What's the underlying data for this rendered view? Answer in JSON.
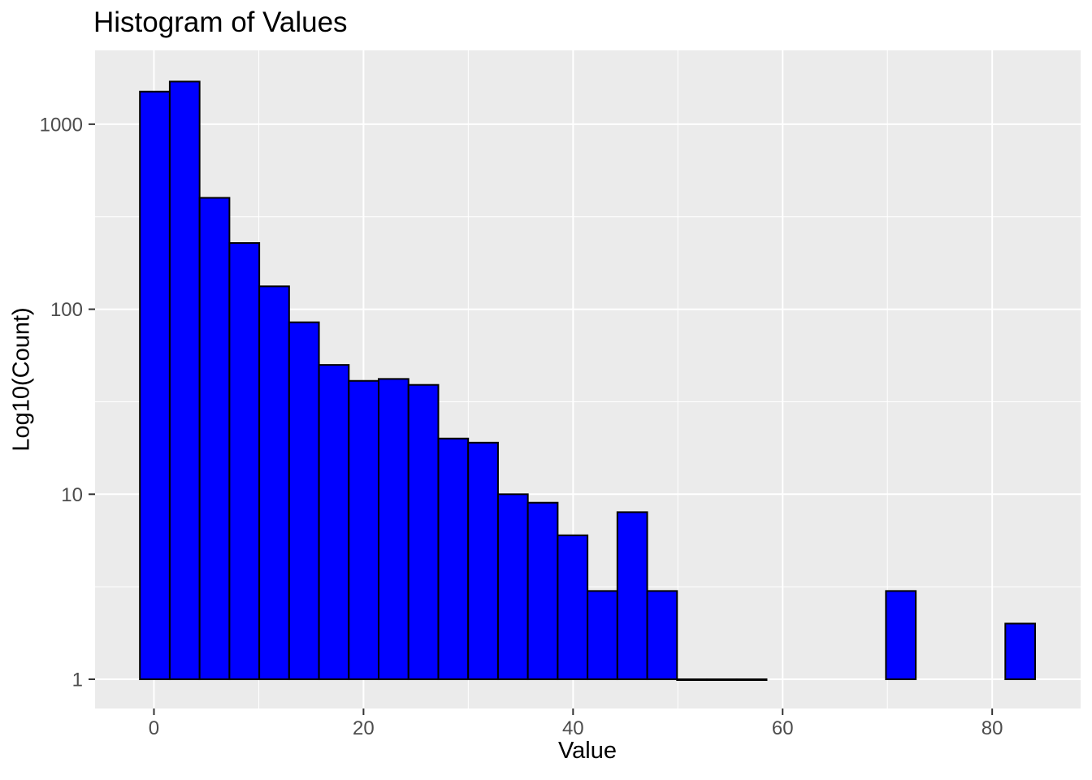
{
  "colors": {
    "bar_fill": "#0000FF",
    "bar_stroke": "#000000",
    "panel_bg": "#EBEBEB",
    "grid": "#FFFFFF",
    "tick_label": "#4D4D4D",
    "tick_mark": "#333333",
    "title_text": "#000000"
  },
  "chart_data": {
    "type": "bar",
    "subtype": "histogram",
    "title": "Histogram of Values",
    "xlabel": "Value",
    "ylabel": "Log10(Count)",
    "y_scale": "log10",
    "grid": "on",
    "legend": "none",
    "x_ticks": [
      0,
      20,
      40,
      60,
      80
    ],
    "x_minor_ticks": [
      10,
      30,
      50,
      70
    ],
    "y_ticks": [
      1,
      10,
      100,
      1000
    ],
    "y_minor_ticks_log": [
      0.5,
      1.5,
      2.5
    ],
    "xlim": [
      -5.62,
      88.44
    ],
    "ylim_log": [
      -0.158,
      3.399
    ],
    "bin_start": -1.34,
    "bin_width": 2.848,
    "counts": [
      1500,
      1700,
      400,
      228,
      133,
      85,
      50,
      41,
      42,
      39,
      20,
      19,
      10,
      9,
      6,
      3,
      8,
      3,
      1,
      1,
      1,
      0,
      0,
      0,
      0,
      3,
      0,
      0,
      0,
      2
    ]
  }
}
